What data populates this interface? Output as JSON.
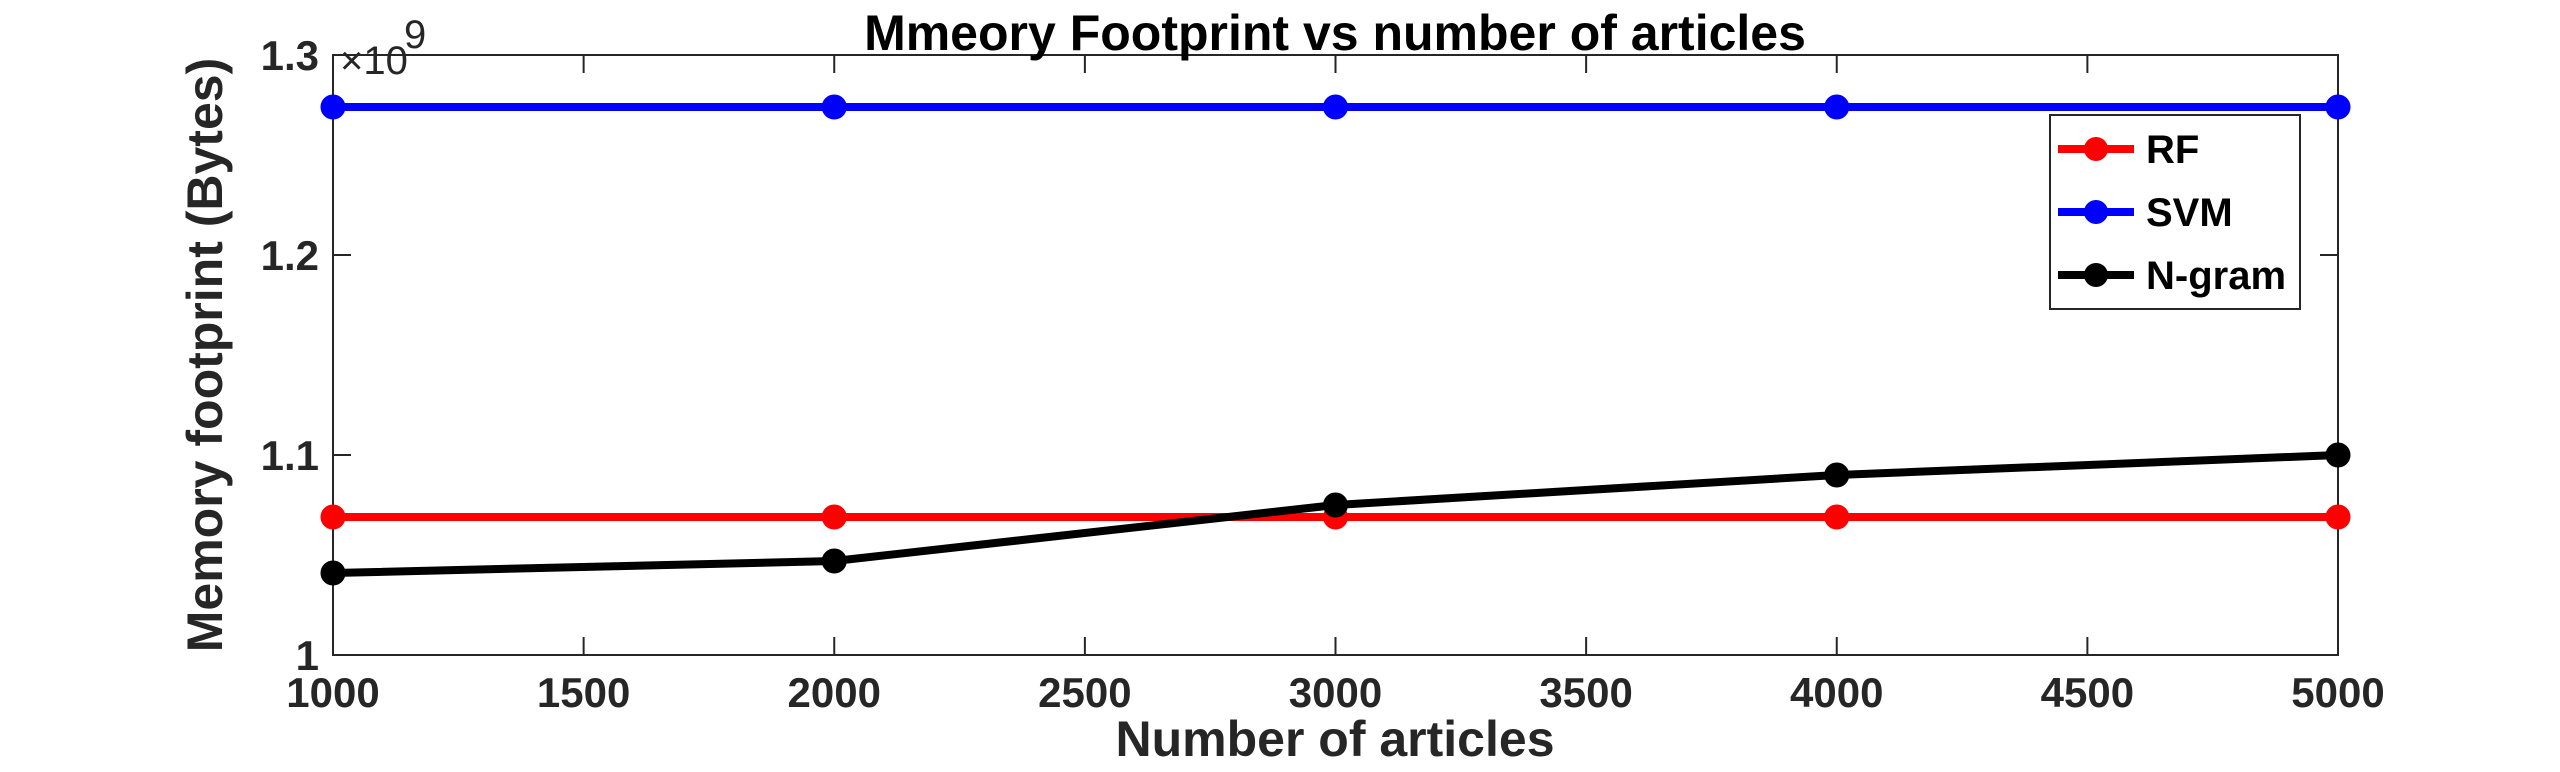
{
  "chart_data": {
    "type": "line",
    "title": "Mmeory Footprint vs number of articles",
    "xlabel": "Number of articles",
    "ylabel": "Memory footprint (Bytes)",
    "y_exponent_prefix": "×10",
    "y_exponent": "9",
    "xlim": [
      1000,
      5000
    ],
    "ylim": [
      1.0,
      1.3
    ],
    "x_ticks": [
      1000,
      1500,
      2000,
      2500,
      3000,
      3500,
      4000,
      4500,
      5000
    ],
    "x_tick_labels": [
      "1000",
      "1500",
      "2000",
      "2500",
      "3000",
      "3500",
      "4000",
      "4500",
      "5000"
    ],
    "y_ticks": [
      1.0,
      1.1,
      1.2,
      1.3
    ],
    "y_tick_labels": [
      "1",
      "1.1",
      "1.2",
      "1.3"
    ],
    "x": [
      1000,
      2000,
      3000,
      4000,
      5000
    ],
    "series": [
      {
        "name": "RF",
        "color": "#ff0000",
        "values": [
          1.069,
          1.069,
          1.069,
          1.069,
          1.069
        ]
      },
      {
        "name": "SVM",
        "color": "#0000ff",
        "values": [
          1.274,
          1.274,
          1.274,
          1.274,
          1.274
        ]
      },
      {
        "name": "N-gram",
        "color": "#000000",
        "values": [
          1.041,
          1.047,
          1.075,
          1.09,
          1.1
        ]
      }
    ],
    "grid": false,
    "legend_position": "top-right"
  }
}
